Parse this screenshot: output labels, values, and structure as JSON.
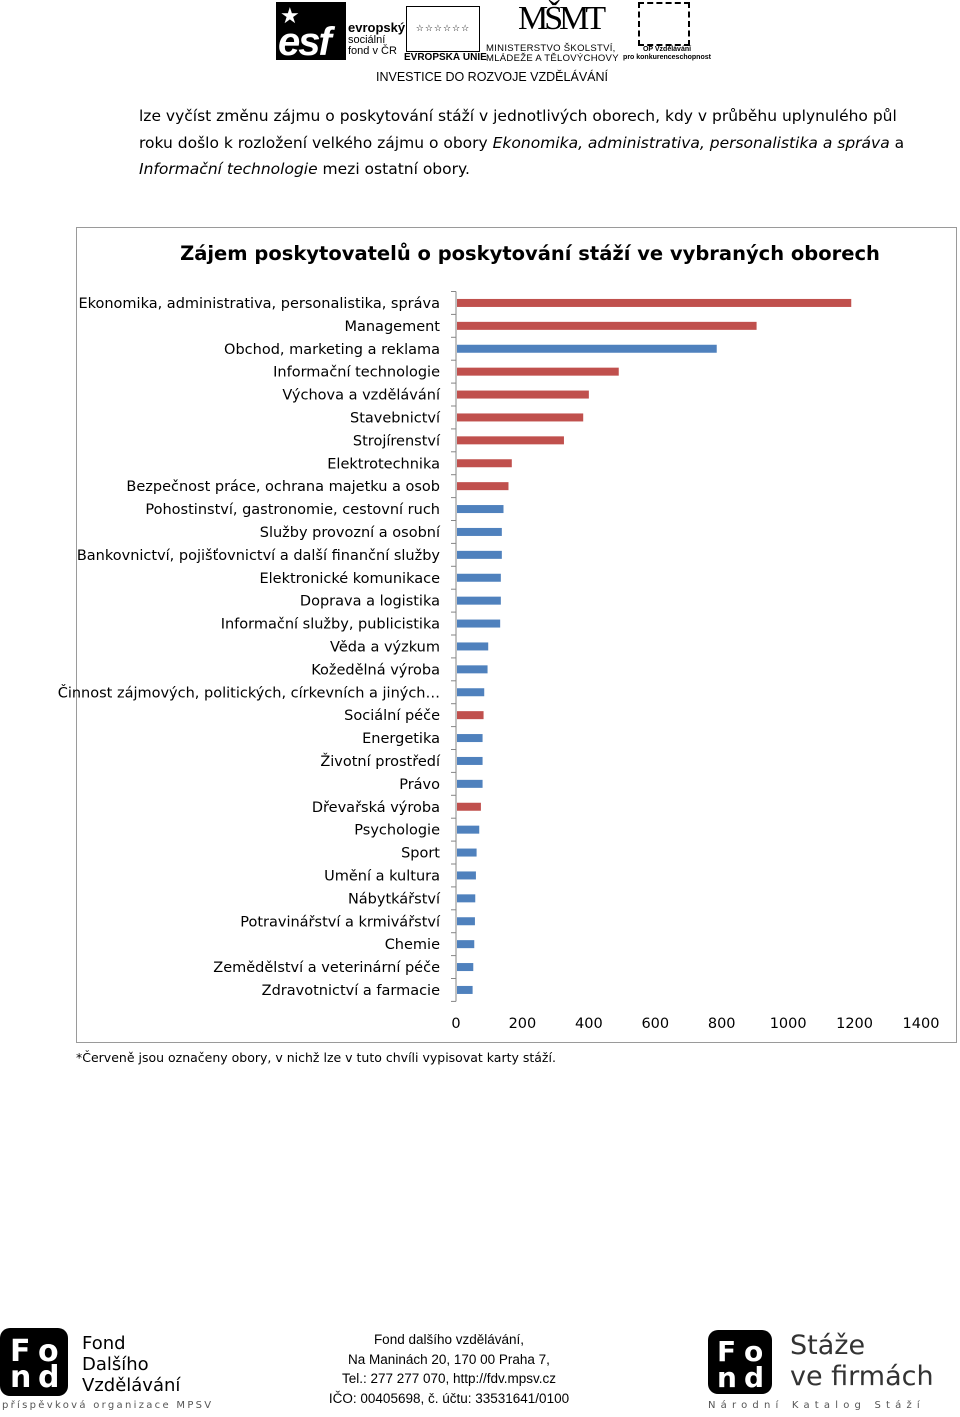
{
  "header": {
    "esf_text_1": "evropský",
    "esf_text_2": "sociální",
    "esf_text_3": "fond v ČR",
    "eu_label": "EVROPSKÁ UNIE",
    "msmt_logo": "MŠMT",
    "msmt_label_1": "MINISTERSTVO ŠKOLSTVÍ,",
    "msmt_label_2": "MLÁDEŽE A TĚLOVÝCHOVY",
    "op_label_1": "OP Vzdělávání",
    "op_label_2": "pro konkurenceschopnost",
    "invest": "INVESTICE DO ROZVOJE VZDĚLÁVÁNÍ"
  },
  "intro": {
    "part1": "lze vyčíst změnu zájmu o poskytování stáží v jednotlivých oborech, kdy v průběhu uplynulého půl roku došlo k rozložení velkého zájmu o obory ",
    "italic1": "Ekonomika, administrativa, personalistika a správa",
    "part2": " a ",
    "italic2": "Informační technologie",
    "part3": " mezi ostatní obory."
  },
  "chart_data": {
    "type": "bar",
    "orientation": "horizontal",
    "title": "Zájem poskytovatelů o poskytování stáží ve vybraných oborech",
    "xlim": [
      0,
      1400
    ],
    "xticks": [
      "0",
      "200",
      "400",
      "600",
      "800",
      "1000",
      "1200",
      "1400"
    ],
    "grid": false,
    "colors": {
      "red": "#c0504d",
      "blue": "#4f81bd"
    },
    "categories": [
      "Ekonomika, administrativa, personalistika, správa",
      "Management",
      "Obchod, marketing a reklama",
      "Informační technologie",
      "Výchova a vzdělávání",
      "Stavebnictví",
      "Strojírenství",
      "Elektrotechnika",
      "Bezpečnost práce, ochrana majetku a osob",
      "Pohostinství, gastronomie, cestovní ruch",
      "Služby provozní a osobní",
      "Bankovnictví, pojišťovnictví a další finanční služby",
      "Elektronické komunikace",
      "Doprava a logistika",
      "Informační služby, publicistika",
      "Věda a výzkum",
      "Kožedělná výroba",
      "Činnost zájmových, politických, církevních a jiných…",
      "Sociální péče",
      "Energetika",
      "Životní prostředí",
      "Právo",
      "Dřevařská výroba",
      "Psychologie",
      "Sport",
      "Umění a kultura",
      "Nábytkářství",
      "Potravinářství a krmivářství",
      "Chemie",
      "Zemědělství a veterinární péče",
      "Zdravotnictví a farmacie"
    ],
    "values": [
      1190,
      905,
      785,
      490,
      400,
      383,
      325,
      168,
      158,
      143,
      138,
      138,
      135,
      135,
      133,
      97,
      95,
      85,
      83,
      80,
      80,
      80,
      75,
      70,
      62,
      60,
      58,
      57,
      55,
      52,
      50
    ],
    "bar_colors": [
      "red",
      "red",
      "blue",
      "red",
      "red",
      "red",
      "red",
      "red",
      "red",
      "blue",
      "blue",
      "blue",
      "blue",
      "blue",
      "blue",
      "blue",
      "blue",
      "blue",
      "red",
      "blue",
      "blue",
      "blue",
      "red",
      "blue",
      "blue",
      "blue",
      "blue",
      "blue",
      "blue",
      "blue",
      "blue"
    ]
  },
  "footnote": "*Červeně jsou označeny obory, v nichž lze v tuto chvíli vypisovat karty stáží.",
  "footer": {
    "fdv_word1": "Fond",
    "fdv_word2": "Dalšího",
    "fdv_word3": "Vzdělávání",
    "fdv_sub": "příspěvková organizace MPSV",
    "addr1": "Fond dalšího vzdělávání,",
    "addr2": "Na Maninách 20, 170 00 Praha 7,",
    "addr3": "Tel.: 277 277 070, http://fdv.mpsv.cz",
    "addr4": "IČO: 00405698, č. účtu: 33531641/0100",
    "stz_word1": "Stáže",
    "stz_word2": "ve firmách",
    "stz_sub": "Národní Katalog Stáží"
  }
}
